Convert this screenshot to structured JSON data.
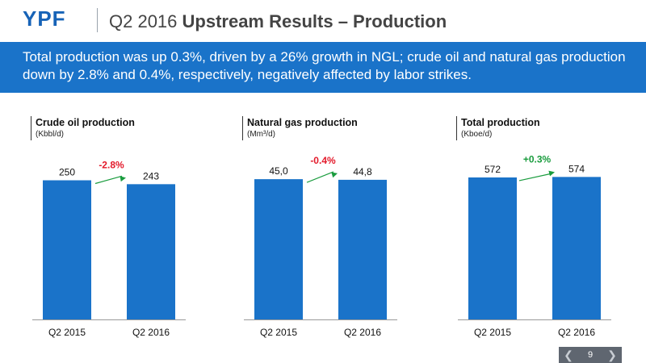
{
  "header": {
    "logo": "YPF",
    "title_prefix": "Q2 2016 ",
    "title_bold": "Upstream Results – Production"
  },
  "banner": {
    "text": "Total production was up 0.3%, driven by a 26% growth in NGL; crude oil and natural gas production down by 2.8% and 0.4%, respectively, negatively affected by labor strikes."
  },
  "colors": {
    "brand": "#1763b7",
    "banner": "#1a73c9",
    "bar": "#1a73c9",
    "negative": "#e3192a",
    "positive": "#1a9c3e",
    "arrow": "#1a9c3e"
  },
  "chart_data": [
    {
      "type": "bar",
      "title": "Crude oil production",
      "unit": "(Kbbl/d)",
      "categories": [
        "Q2 2015",
        "Q2 2016"
      ],
      "values": [
        250,
        243
      ],
      "value_labels": [
        "250",
        "243"
      ],
      "change_label": "-2.8%",
      "change_direction": "down"
    },
    {
      "type": "bar",
      "title": "Natural gas production",
      "unit": "(Mm³/d)",
      "categories": [
        "Q2 2015",
        "Q2 2016"
      ],
      "values": [
        45.0,
        44.8
      ],
      "value_labels": [
        "45,0",
        "44,8"
      ],
      "change_label": "-0.4%",
      "change_direction": "down"
    },
    {
      "type": "bar",
      "title": "Total production",
      "unit": "(Kboe/d)",
      "categories": [
        "Q2 2015",
        "Q2 2016"
      ],
      "values": [
        572,
        574
      ],
      "value_labels": [
        "572",
        "574"
      ],
      "change_label": "+0.3%",
      "change_direction": "up"
    }
  ],
  "pager": {
    "page": "9",
    "prev_icon": "chevron-left-icon",
    "next_icon": "chevron-right-icon"
  }
}
